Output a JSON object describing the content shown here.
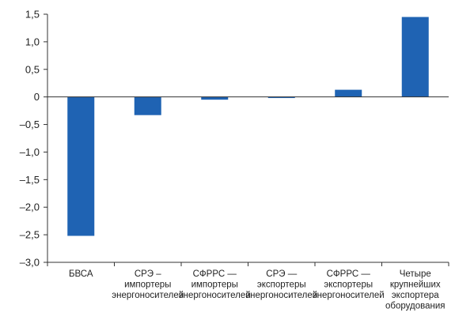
{
  "colors": {
    "bar": "#1f63b3",
    "axis": "#333333",
    "text": "#222222",
    "background": "#ffffff"
  },
  "chart_data": {
    "type": "bar",
    "title": "",
    "xlabel": "",
    "ylabel": "",
    "ylim": [
      -3.0,
      1.5
    ],
    "yticks": [
      1.5,
      1.0,
      0.5,
      0,
      -0.5,
      -1.0,
      -1.5,
      -2.0,
      -2.5,
      -3.0
    ],
    "ytick_labels": [
      "1,5",
      "1,0",
      "0,5",
      "0",
      "–0,5",
      "–1,0",
      "–1,5",
      "–2,0",
      "–2,5",
      "–3,0"
    ],
    "grid": false,
    "legend": "none",
    "categories": [
      [
        "БВСА"
      ],
      [
        "СРЭ –",
        "импортеры",
        "энергоносителей"
      ],
      [
        "СФРРС —",
        "импортеры",
        "энергоносителей"
      ],
      [
        "СРЭ —",
        "экспортеры",
        "энергоносителей"
      ],
      [
        "СФРРС —",
        "экспортеры",
        "энергоносителей"
      ],
      [
        "Четыре",
        "крупнейших",
        "экспортера",
        "оборудования"
      ]
    ],
    "values": [
      -2.52,
      -0.33,
      -0.05,
      -0.02,
      0.13,
      1.45
    ]
  }
}
